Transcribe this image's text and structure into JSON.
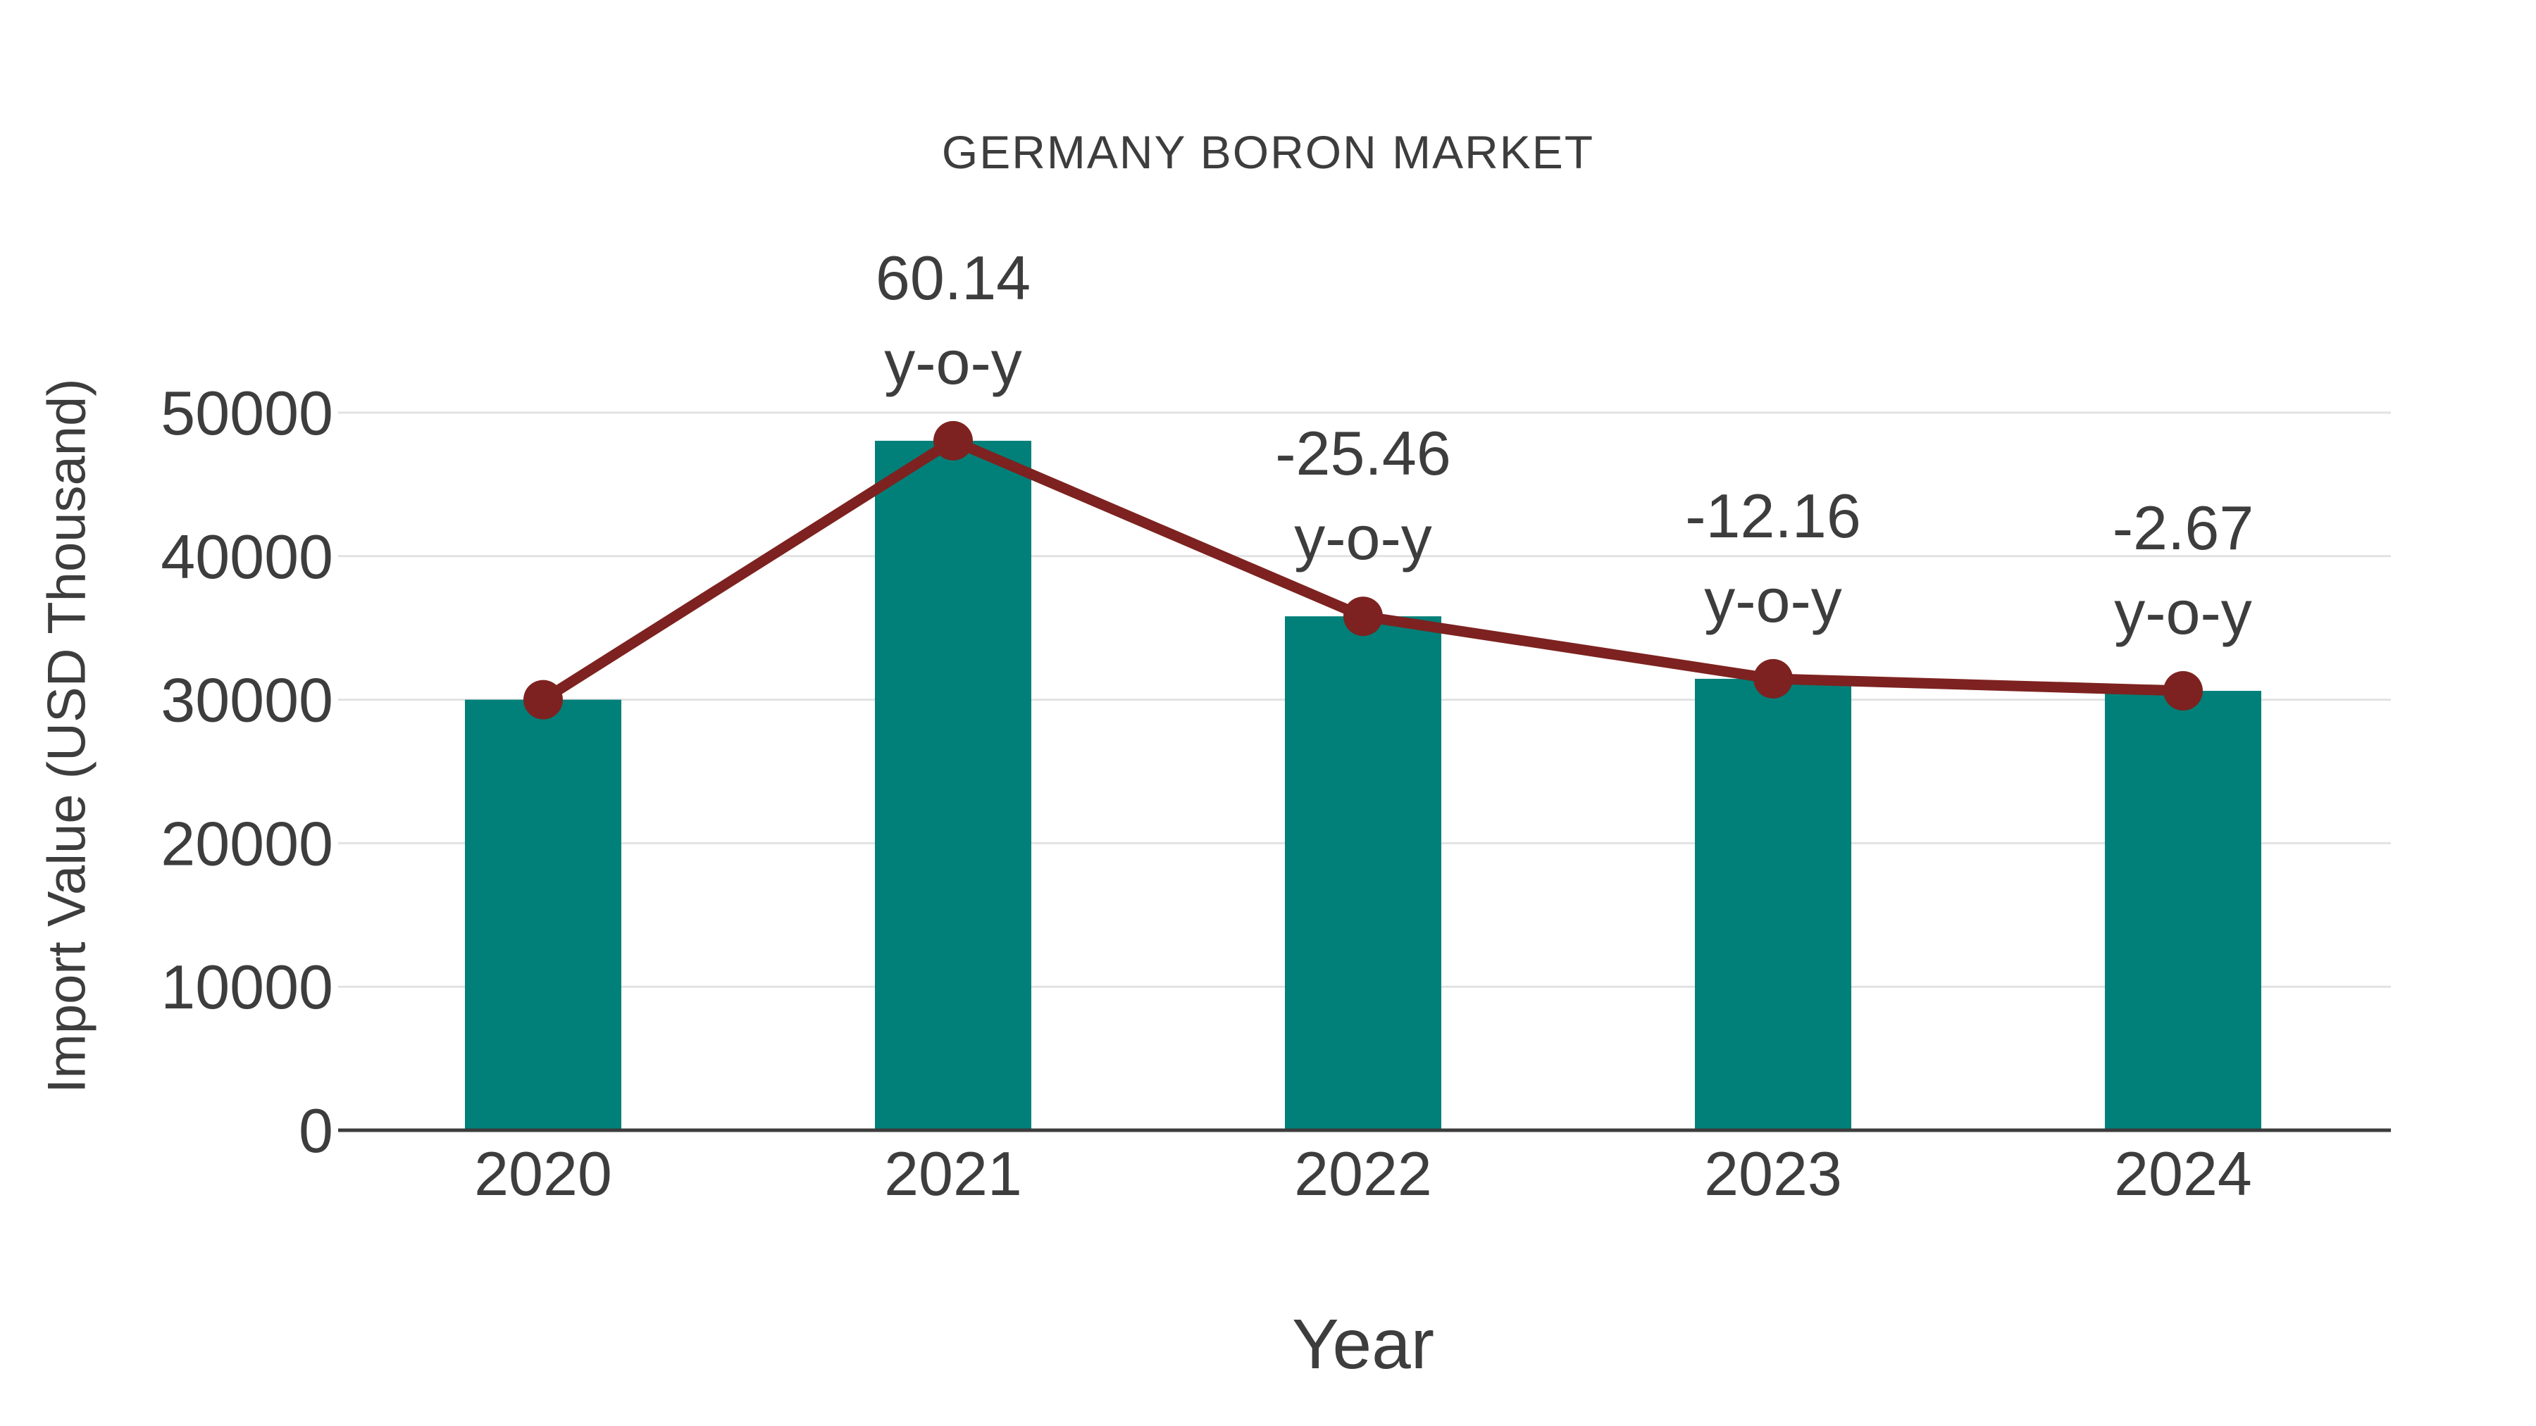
{
  "colors": {
    "background": "#FFFFFF",
    "bar": "#008079",
    "line": "#7D2220",
    "text": "#3D3D3D",
    "grid": "#E2E2E2",
    "axis": "#3C3C3C"
  },
  "chart_data": {
    "type": "bar",
    "subtype": "bar with line overlay and point markers",
    "title": "GERMANY BORON MARKET",
    "xlabel": "Year",
    "ylabel": "Import Value (USD Thousand)",
    "categories": [
      "2020",
      "2021",
      "2022",
      "2023",
      "2024"
    ],
    "series": [
      {
        "name": "Import Value (USD Thousand)",
        "type": "bar",
        "color": "#008079",
        "values": [
          30000,
          48042,
          35810,
          31456,
          30616
        ]
      },
      {
        "name": "y-o-y change",
        "type": "line",
        "color": "#7D2220",
        "values": [
          30000,
          48042,
          35810,
          31456,
          30616
        ],
        "point_labels": [
          null,
          "60.14",
          "-25.46",
          "-12.16",
          "-2.67"
        ],
        "point_label_suffix": "y-o-y"
      }
    ],
    "yoy_percent": [
      null,
      60.14,
      -25.46,
      -12.16,
      -2.67
    ],
    "y_ticks": [
      0,
      10000,
      20000,
      30000,
      40000,
      50000
    ],
    "ylim": [
      0,
      55000
    ],
    "grid": "horizontal",
    "legend": "none"
  }
}
